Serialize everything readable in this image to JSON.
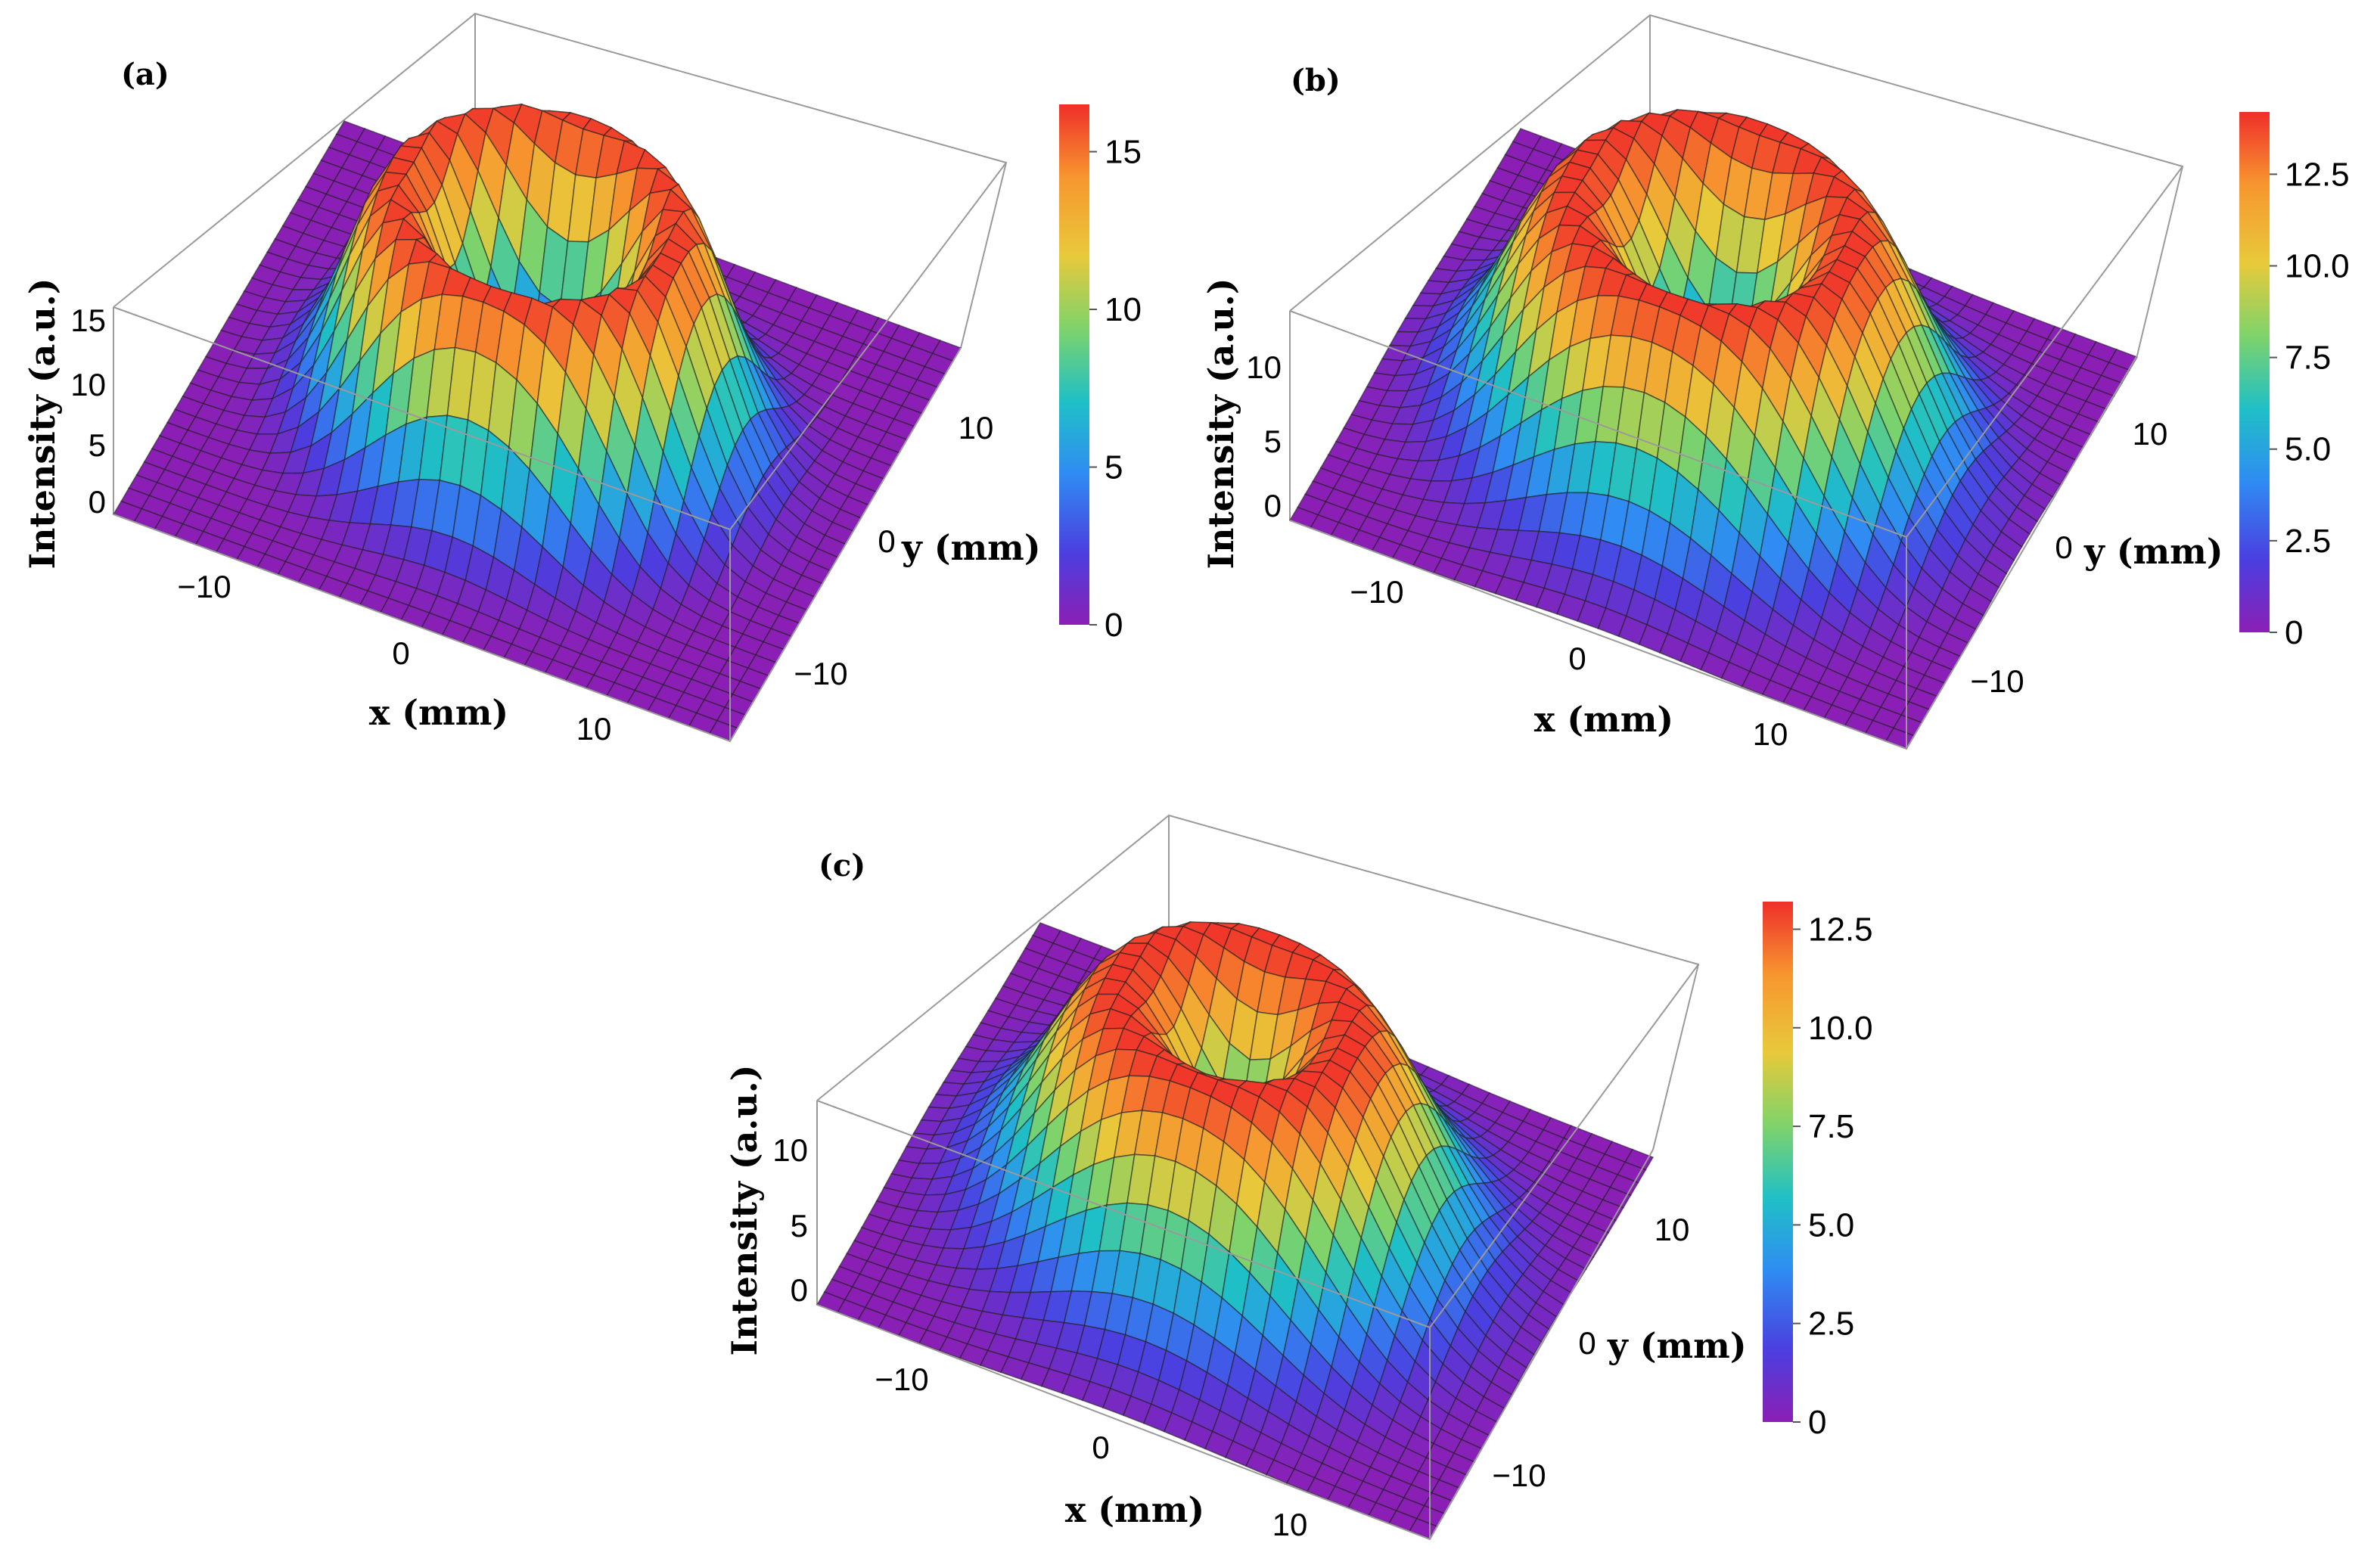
{
  "colorscale": {
    "name": "rainbow",
    "stops": [
      "#8b1fb5",
      "#4b3fe0",
      "#2f8cf2",
      "#1fc0c6",
      "#7fd36a",
      "#e8c93a",
      "#f7962f",
      "#ef2f2a"
    ]
  },
  "chart_data": [
    {
      "type": "surface3d",
      "label": "(a)",
      "zlabel": "Intensity (a.u.)",
      "xlabel": "x (mm)",
      "ylabel": "y (mm)",
      "xticks": [
        "−10",
        "0",
        "10"
      ],
      "yticks": [
        "10",
        "0",
        "−10"
      ],
      "zticks": [
        "15",
        "10",
        "5",
        "0"
      ],
      "zmax": 16.5,
      "colorbar": {
        "ticks": [
          "15",
          "10",
          "5",
          "0"
        ],
        "min": 0,
        "max": 16.5,
        "values": [
          15,
          10,
          5,
          0
        ]
      },
      "ring_radius_mm": 6,
      "ring_width_mm": 3.2
    },
    {
      "type": "surface3d",
      "label": "(b)",
      "zlabel": "Intensity (a.u.)",
      "xlabel": "x (mm)",
      "ylabel": "y (mm)",
      "xticks": [
        "−10",
        "0",
        "10"
      ],
      "yticks": [
        "10",
        "0",
        "−10"
      ],
      "zticks": [
        "10",
        "5",
        "0"
      ],
      "zmax": 14.2,
      "colorbar": {
        "ticks": [
          "12.5",
          "10.0",
          "7.5",
          "5.0",
          "2.5",
          "0"
        ],
        "min": 0,
        "max": 14.2,
        "values": [
          12.5,
          10,
          7.5,
          5,
          2.5,
          0
        ]
      },
      "ring_radius_mm": 6,
      "ring_width_mm": 4.2
    },
    {
      "type": "surface3d",
      "label": "(c)",
      "zlabel": "Intensity (a.u.)",
      "xlabel": "x (mm)",
      "ylabel": "y (mm)",
      "xticks": [
        "−10",
        "0",
        "10"
      ],
      "yticks": [
        "10",
        "0",
        "−10"
      ],
      "zticks": [
        "10",
        "5",
        "0"
      ],
      "zmax": 13.2,
      "colorbar": {
        "ticks": [
          "12.5",
          "10.0",
          "7.5",
          "5.0",
          "2.5",
          "0"
        ],
        "min": 0,
        "max": 13.2,
        "values": [
          12.5,
          10,
          7.5,
          5,
          2.5,
          0
        ]
      },
      "ring_radius_mm": 5,
      "ring_width_mm": 4.8
    }
  ]
}
